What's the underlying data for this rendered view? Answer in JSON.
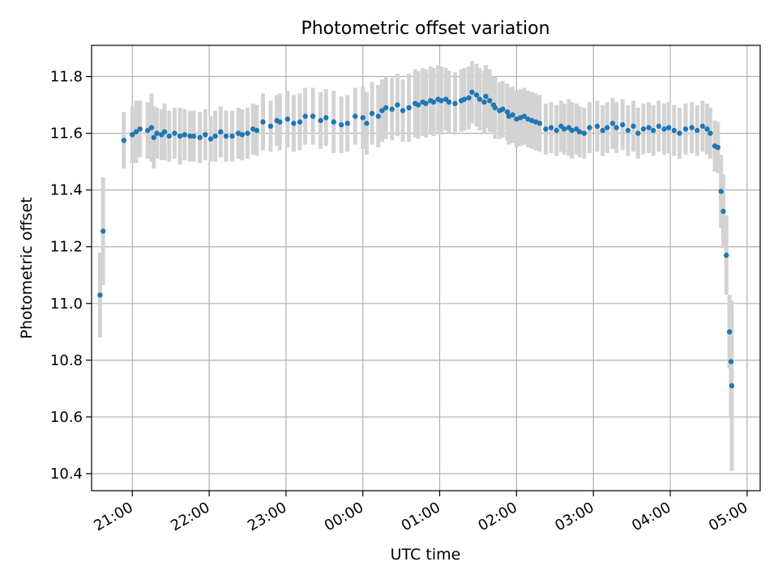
{
  "chart_data": {
    "type": "scatter",
    "title": "Photometric offset variation",
    "xlabel": "UTC time",
    "ylabel": "Photometric offset",
    "x_unit": "hours (UTC, continuing past midnight)",
    "xlim": [
      20.47,
      29.17
    ],
    "ylim": [
      10.34,
      11.91
    ],
    "x_ticks": [
      {
        "value": 21,
        "label": "21:00"
      },
      {
        "value": 22,
        "label": "22:00"
      },
      {
        "value": 23,
        "label": "23:00"
      },
      {
        "value": 24,
        "label": "00:00"
      },
      {
        "value": 25,
        "label": "01:00"
      },
      {
        "value": 26,
        "label": "02:00"
      },
      {
        "value": 27,
        "label": "03:00"
      },
      {
        "value": 28,
        "label": "04:00"
      },
      {
        "value": 29,
        "label": "05:00"
      }
    ],
    "y_ticks": [
      {
        "value": 10.4,
        "label": "10.4"
      },
      {
        "value": 10.6,
        "label": "10.6"
      },
      {
        "value": 10.8,
        "label": "10.8"
      },
      {
        "value": 11.0,
        "label": "11.0"
      },
      {
        "value": 11.2,
        "label": "11.2"
      },
      {
        "value": 11.4,
        "label": "11.4"
      },
      {
        "value": 11.6,
        "label": "11.6"
      },
      {
        "value": 11.8,
        "label": "11.8"
      }
    ],
    "grid": true,
    "colors": {
      "point": "#1f77b4",
      "errorbar": "#d3d3d3",
      "grid": "#b0b0b0",
      "axes": "#000000"
    },
    "series": [
      {
        "x": [
          20.58,
          20.62,
          20.89,
          21.0,
          21.05,
          21.1,
          21.2,
          21.25,
          21.28,
          21.32,
          21.38,
          21.42,
          21.48,
          21.55,
          21.62,
          21.68,
          21.75,
          21.8,
          21.88,
          21.95,
          22.02,
          22.08,
          22.15,
          22.22,
          22.3,
          22.38,
          22.43,
          22.5,
          22.57,
          22.62,
          22.7,
          22.8,
          22.88,
          22.92,
          23.02,
          23.1,
          23.18,
          23.25,
          23.35,
          23.45,
          23.52,
          23.62,
          23.72,
          23.8,
          23.9,
          24.0,
          24.05,
          24.12,
          24.2,
          24.25,
          24.3,
          24.38,
          24.45,
          24.52,
          24.6,
          24.68,
          24.72,
          24.78,
          24.82,
          24.88,
          24.92,
          24.98,
          25.02,
          25.08,
          25.12,
          25.2,
          25.28,
          25.32,
          25.38,
          25.42,
          25.48,
          25.52,
          25.58,
          25.6,
          25.65,
          25.7,
          25.72,
          25.78,
          25.82,
          25.88,
          25.9,
          25.95,
          26.0,
          26.05,
          26.1,
          26.15,
          26.2,
          26.25,
          26.3,
          26.38,
          26.45,
          26.52,
          26.58,
          26.62,
          26.68,
          26.72,
          26.78,
          26.82,
          26.88,
          26.95,
          27.05,
          27.12,
          27.18,
          27.25,
          27.3,
          27.38,
          27.45,
          27.52,
          27.58,
          27.65,
          27.72,
          27.78,
          27.85,
          27.92,
          27.98,
          28.05,
          28.12,
          28.2,
          28.28,
          28.35,
          28.42,
          28.48,
          28.52,
          28.58,
          28.62,
          28.66,
          28.69,
          28.73,
          28.77,
          28.79,
          28.8
        ],
        "y": [
          11.03,
          11.255,
          11.575,
          11.595,
          11.605,
          11.615,
          11.61,
          11.62,
          11.585,
          11.6,
          11.595,
          11.605,
          11.59,
          11.6,
          11.59,
          11.595,
          11.59,
          11.59,
          11.585,
          11.595,
          11.58,
          11.59,
          11.605,
          11.59,
          11.59,
          11.6,
          11.595,
          11.6,
          11.615,
          11.61,
          11.64,
          11.625,
          11.645,
          11.64,
          11.65,
          11.635,
          11.64,
          11.66,
          11.66,
          11.645,
          11.655,
          11.64,
          11.63,
          11.635,
          11.66,
          11.655,
          11.635,
          11.67,
          11.66,
          11.68,
          11.69,
          11.685,
          11.7,
          11.68,
          11.69,
          11.705,
          11.7,
          11.71,
          11.705,
          11.715,
          11.71,
          11.72,
          11.715,
          11.72,
          11.71,
          11.705,
          11.715,
          11.72,
          11.725,
          11.745,
          11.735,
          11.72,
          11.71,
          11.73,
          11.715,
          11.7,
          11.69,
          11.68,
          11.685,
          11.675,
          11.66,
          11.665,
          11.65,
          11.655,
          11.66,
          11.65,
          11.645,
          11.64,
          11.635,
          11.615,
          11.62,
          11.61,
          11.625,
          11.615,
          11.62,
          11.61,
          11.615,
          11.605,
          11.6,
          11.62,
          11.625,
          11.61,
          11.62,
          11.635,
          11.62,
          11.63,
          11.61,
          11.625,
          11.6,
          11.615,
          11.62,
          11.61,
          11.625,
          11.615,
          11.62,
          11.61,
          11.6,
          11.615,
          11.62,
          11.61,
          11.625,
          11.615,
          11.6,
          11.555,
          11.55,
          11.395,
          11.325,
          11.17,
          10.9,
          10.795,
          10.71
        ],
        "err": [
          0.15,
          0.19,
          0.1,
          0.1,
          0.11,
          0.1,
          0.1,
          0.12,
          0.11,
          0.09,
          0.09,
          0.1,
          0.09,
          0.09,
          0.1,
          0.09,
          0.09,
          0.09,
          0.09,
          0.09,
          0.08,
          0.09,
          0.09,
          0.09,
          0.09,
          0.09,
          0.09,
          0.09,
          0.09,
          0.09,
          0.1,
          0.09,
          0.09,
          0.1,
          0.1,
          0.1,
          0.1,
          0.1,
          0.1,
          0.1,
          0.1,
          0.11,
          0.1,
          0.1,
          0.1,
          0.11,
          0.11,
          0.11,
          0.11,
          0.11,
          0.11,
          0.11,
          0.11,
          0.11,
          0.12,
          0.12,
          0.12,
          0.12,
          0.12,
          0.12,
          0.12,
          0.12,
          0.12,
          0.11,
          0.11,
          0.11,
          0.11,
          0.11,
          0.11,
          0.11,
          0.11,
          0.11,
          0.11,
          0.11,
          0.11,
          0.1,
          0.11,
          0.1,
          0.1,
          0.1,
          0.1,
          0.1,
          0.1,
          0.1,
          0.1,
          0.1,
          0.1,
          0.1,
          0.1,
          0.09,
          0.09,
          0.09,
          0.09,
          0.09,
          0.1,
          0.1,
          0.09,
          0.09,
          0.09,
          0.09,
          0.09,
          0.09,
          0.09,
          0.09,
          0.09,
          0.09,
          0.09,
          0.09,
          0.09,
          0.09,
          0.09,
          0.09,
          0.09,
          0.09,
          0.09,
          0.09,
          0.09,
          0.09,
          0.09,
          0.09,
          0.09,
          0.09,
          0.09,
          0.09,
          0.09,
          0.13,
          0.13,
          0.14,
          0.13,
          0.2,
          0.3
        ]
      }
    ]
  }
}
